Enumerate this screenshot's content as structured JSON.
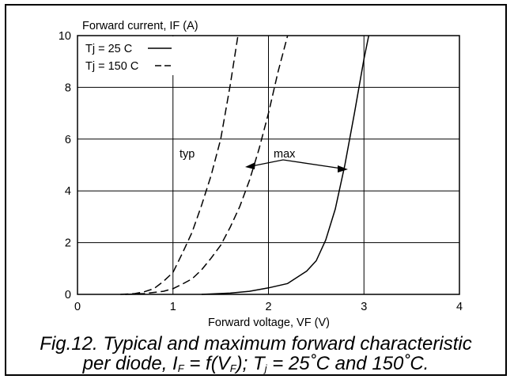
{
  "chart_data": {
    "type": "line",
    "ylabel": "Forward current, IF (A)",
    "xlabel": "Forward voltage, VF (V)",
    "xlim": [
      0,
      4
    ],
    "ylim": [
      0,
      10
    ],
    "xticks": [
      0,
      1,
      2,
      3,
      4
    ],
    "yticks": [
      0,
      2,
      4,
      6,
      8,
      10
    ],
    "grid": true,
    "legend": {
      "placement": "top-left",
      "entries": [
        {
          "label": "Tj = 25 C",
          "style": "solid"
        },
        {
          "label": "Tj = 150 C",
          "style": "dashed"
        }
      ]
    },
    "annotations": [
      "typ",
      "max"
    ],
    "series": [
      {
        "legend": "Tj = 150 C",
        "group": "typ",
        "style": "dashed",
        "x": [
          0.45,
          0.6,
          0.7,
          0.8,
          0.9,
          1.0,
          1.1,
          1.2,
          1.3,
          1.4,
          1.5,
          1.6,
          1.68
        ],
        "y": [
          0.0,
          0.03,
          0.1,
          0.22,
          0.5,
          0.85,
          1.6,
          2.4,
          3.45,
          4.6,
          6.0,
          8.1,
          10.0
        ]
      },
      {
        "legend": "Tj = 150 C",
        "group": "max",
        "style": "dashed",
        "x": [
          0.5,
          0.7,
          0.9,
          1.0,
          1.1,
          1.2,
          1.3,
          1.4,
          1.5,
          1.6,
          1.7,
          1.8,
          1.9,
          2.0,
          2.1,
          2.2
        ],
        "y": [
          0.0,
          0.03,
          0.12,
          0.22,
          0.4,
          0.6,
          0.95,
          1.4,
          1.9,
          2.6,
          3.4,
          4.4,
          5.6,
          7.0,
          8.6,
          10.0
        ]
      },
      {
        "legend": "Tj = 25 C",
        "group": "max",
        "style": "solid",
        "x": [
          1.3,
          1.6,
          1.8,
          2.0,
          2.2,
          2.4,
          2.5,
          2.6,
          2.7,
          2.8,
          2.9,
          3.0,
          3.05
        ],
        "y": [
          0.0,
          0.05,
          0.12,
          0.25,
          0.42,
          0.9,
          1.3,
          2.1,
          3.3,
          5.0,
          7.0,
          9.1,
          10.0
        ]
      }
    ]
  },
  "caption": {
    "line1": "Fig.12.  Typical and maximum forward characteristic",
    "line2_pre": "per diode, I",
    "sub_f1": "F",
    "line2_mid": " = f(V",
    "sub_f2": "F",
    "line2_mid2": "); T",
    "sub_j": "j",
    "line2_post": " = 25˚C and 150˚C."
  }
}
